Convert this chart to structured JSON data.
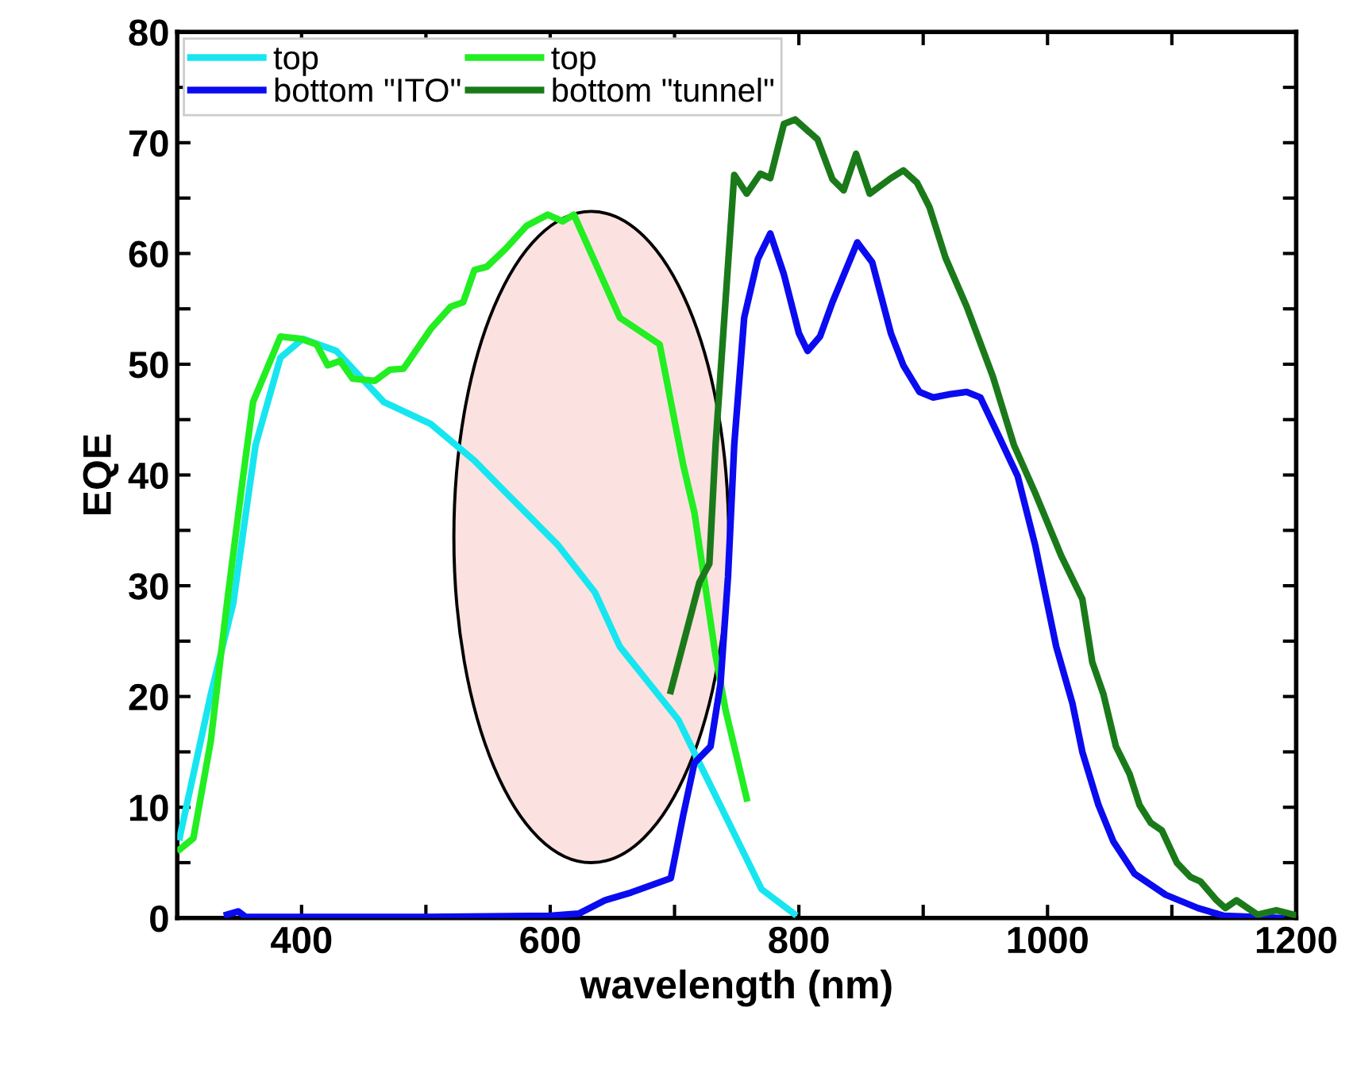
{
  "chart_data": {
    "type": "line",
    "xlabel": "wavelength (nm)",
    "ylabel": "EQE",
    "xlim": [
      300,
      1200
    ],
    "ylim": [
      0,
      80
    ],
    "xticks": [
      400,
      {
        "value": 500,
        "label": null
      },
      600,
      {
        "value": 700,
        "label": null
      },
      800,
      {
        "value": 900,
        "label": null
      },
      1000,
      {
        "value": 1100,
        "label": null
      },
      1200
    ],
    "yticks": [
      0,
      {
        "value": 5,
        "label": null
      },
      10,
      {
        "value": 15,
        "label": null
      },
      20,
      {
        "value": 25,
        "label": null
      },
      30,
      {
        "value": 35,
        "label": null
      },
      40,
      {
        "value": 45,
        "label": null
      },
      50,
      {
        "value": 55,
        "label": null
      },
      60,
      {
        "value": 65,
        "label": null
      },
      70,
      {
        "value": 75,
        "label": null
      },
      80
    ],
    "legend": "top left",
    "grid": false,
    "marker": "none",
    "line_style": "solid",
    "series": [
      {
        "name": "top",
        "color": "#17e6f0",
        "x": [
          302,
          327,
          345,
          357,
          363,
          383,
          401,
          428,
          466,
          504,
          539,
          560,
          606,
          636,
          656,
          703,
          720,
          770,
          796
        ],
        "values": [
          7.3,
          20.2,
          28.4,
          38,
          42.7,
          50.6,
          52.3,
          51.2,
          46.6,
          44.6,
          41.3,
          38.9,
          33.7,
          29.4,
          24.5,
          17.9,
          14,
          2.6,
          0.4
        ]
      },
      {
        "name": "top",
        "color": "#22ee22",
        "x": [
          302,
          313,
          327,
          340,
          353,
          361,
          383,
          399,
          412,
          421,
          431,
          441,
          459,
          471,
          482,
          504,
          520,
          530,
          539,
          549,
          564,
          581,
          598,
          610,
          619,
          656,
          688,
          707,
          716,
          733,
          741,
          758
        ],
        "values": [
          6.2,
          7.2,
          16,
          28.4,
          39.9,
          46.6,
          52.5,
          52.3,
          51.8,
          49.9,
          50.3,
          48.7,
          48.5,
          49.5,
          49.6,
          53.2,
          55.2,
          55.6,
          58.5,
          58.8,
          60.4,
          62.5,
          63.5,
          62.9,
          63.5,
          54.2,
          51.8,
          40.9,
          36.6,
          23.7,
          18.8,
          10.8
        ]
      },
      {
        "name": "bottom \"ITO\"",
        "color": "#0b0bf0",
        "x": [
          340,
          349,
          355,
          400,
          500,
          600,
          623,
          644,
          665,
          697,
          707,
          716,
          729,
          737,
          743,
          748,
          756,
          767,
          777,
          788,
          800,
          807,
          817,
          827,
          847,
          859,
          874,
          884,
          897,
          908,
          922,
          935,
          946,
          960,
          976,
          990,
          1007,
          1020,
          1028,
          1041,
          1053,
          1070,
          1095,
          1121,
          1142,
          1188
        ],
        "values": [
          0.3,
          0.6,
          0.1,
          0.1,
          0.1,
          0.2,
          0.4,
          1.6,
          2.3,
          3.6,
          9.3,
          14,
          15.5,
          21.2,
          30.8,
          42.7,
          54.2,
          59.5,
          61.8,
          58.1,
          52.8,
          51.2,
          52.5,
          55.6,
          61,
          59.2,
          52.8,
          49.9,
          47.5,
          47,
          47.3,
          47.5,
          47,
          43.7,
          39.9,
          33.7,
          24.5,
          19.4,
          15,
          10.2,
          6.9,
          4,
          2.1,
          0.9,
          0.2,
          0
        ]
      },
      {
        "name": "bottom \"tunnel\"",
        "color": "#1a7a1a",
        "x": [
          697,
          720,
          728,
          733,
          748,
          758,
          769,
          777,
          788,
          797,
          815,
          827,
          836,
          846,
          857,
          874,
          884,
          895,
          905,
          918,
          935,
          956,
          973,
          990,
          1011,
          1028,
          1036,
          1045,
          1055,
          1066,
          1074,
          1083,
          1092,
          1104,
          1115,
          1123,
          1136,
          1143,
          1152,
          1161,
          1169,
          1184,
          1198
        ],
        "values": [
          20.5,
          30.3,
          32,
          42.7,
          67.1,
          65.4,
          67.2,
          66.8,
          71.7,
          72.1,
          70.3,
          66.7,
          65.7,
          69,
          65.4,
          66.8,
          67.5,
          66.4,
          64.2,
          59.6,
          55.2,
          48.9,
          42.7,
          38.4,
          32.7,
          28.8,
          23.1,
          20.2,
          15.5,
          13,
          10.2,
          8.6,
          7.9,
          5,
          3.7,
          3.3,
          1.6,
          0.9,
          1.6,
          0.9,
          0.3,
          0.7,
          0.3
        ]
      }
    ]
  }
}
